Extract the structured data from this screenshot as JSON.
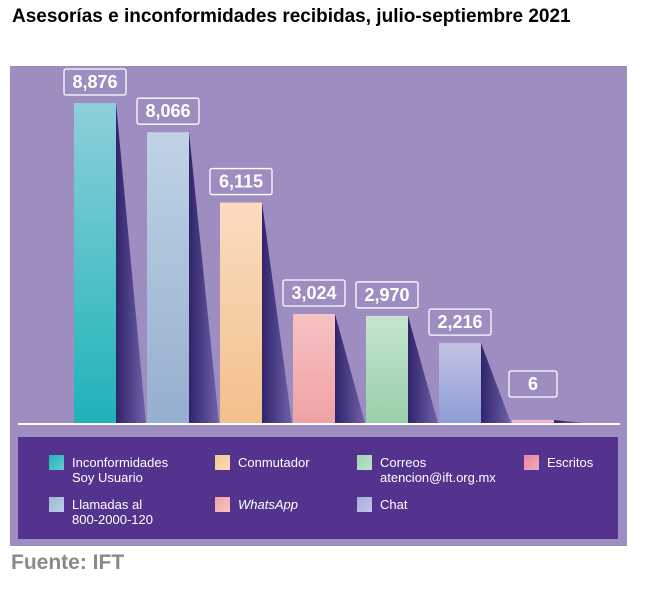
{
  "title": "Asesorías e inconformidades recibidas, julio-septiembre 2021",
  "source": "Fuente: IFT",
  "chart_data": {
    "type": "bar",
    "title": "Asesorías e inconformidades recibidas, julio-septiembre 2021",
    "categories": [
      "Inconformidades Soy Usuario",
      "Llamadas al 800-2000-120",
      "Conmutador",
      "WhatsApp",
      "Correos atencion@ift.org.mx",
      "Chat",
      "Escritos"
    ],
    "values": [
      8876,
      8066,
      6115,
      3024,
      2970,
      2216,
      6
    ],
    "value_labels": [
      "8,876",
      "8,066",
      "6,115",
      "3,024",
      "2,970",
      "2,216",
      "6"
    ],
    "ylim": [
      0,
      8876
    ],
    "grid": false,
    "legend_position": "bottom",
    "colors": [
      [
        "#1eb3b8",
        "#8ecfdb"
      ],
      [
        "#96aecf",
        "#c0d3e5"
      ],
      [
        "#f2c08b",
        "#fbdcc0"
      ],
      [
        "#f0a2a4",
        "#f7c2c3"
      ],
      [
        "#98cfa8",
        "#c6e5d0"
      ],
      [
        "#8c9ed6",
        "#c4c2e5"
      ],
      [
        "#f1a2c1",
        "#f7c6d6"
      ]
    ]
  },
  "legend": [
    {
      "label": "Inconformidades\nSoy Usuario",
      "color": "#1eb3b8"
    },
    {
      "label": "Llamadas al\n800-2000-120",
      "color": "#9fb8d5"
    },
    {
      "label": "Conmutador",
      "color": "#f4c795"
    },
    {
      "label": "WhatsApp",
      "color": "#f2a4a5"
    },
    {
      "label": "Correos\natencion@ift.org.mx",
      "color": "#9fd3ae"
    },
    {
      "label": "Chat",
      "color": "#a9a9dc"
    },
    {
      "label": "Escritos",
      "color": "#e8859f"
    }
  ]
}
